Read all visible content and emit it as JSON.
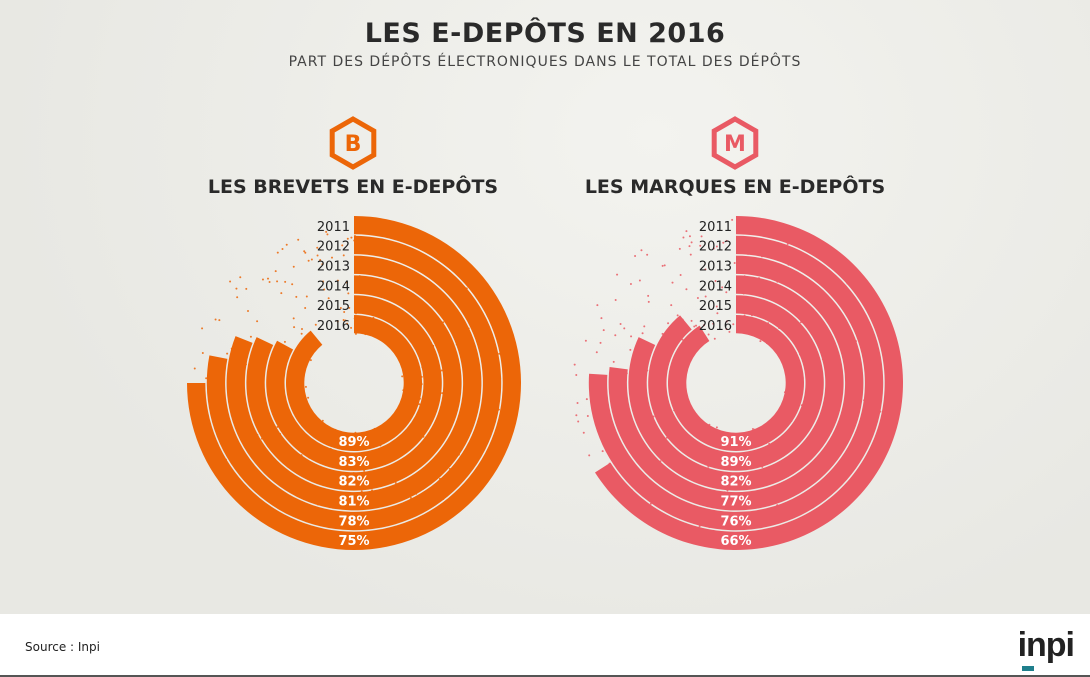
{
  "title": "LES E-DEPÔTS EN 2016",
  "subtitle": "PART DES DÉPÔTS ÉLECTRONIQUES DANS LE TOTAL DES DÉPÔTS",
  "footer": {
    "source": "Source : Inpi",
    "logo": "inpi"
  },
  "chart_data": [
    {
      "type": "radial-bar",
      "title": "LES BREVETS EN E-DEPÔTS",
      "badge": "B",
      "color": "#ec6608",
      "categories": [
        "2011",
        "2012",
        "2013",
        "2014",
        "2015",
        "2016"
      ],
      "values": [
        75,
        78,
        81,
        82,
        83,
        89
      ],
      "labels": [
        "75%",
        "78%",
        "81%",
        "82%",
        "83%",
        "89%"
      ],
      "ylim": [
        0,
        100
      ]
    },
    {
      "type": "radial-bar",
      "title": "LES MARQUES EN E-DEPÔTS",
      "badge": "M",
      "color": "#e95a64",
      "categories": [
        "2011",
        "2012",
        "2013",
        "2014",
        "2015",
        "2016"
      ],
      "values": [
        66,
        76,
        77,
        82,
        89,
        91
      ],
      "labels": [
        "66%",
        "76%",
        "77%",
        "82%",
        "89%",
        "91%"
      ],
      "ylim": [
        0,
        100
      ]
    }
  ]
}
